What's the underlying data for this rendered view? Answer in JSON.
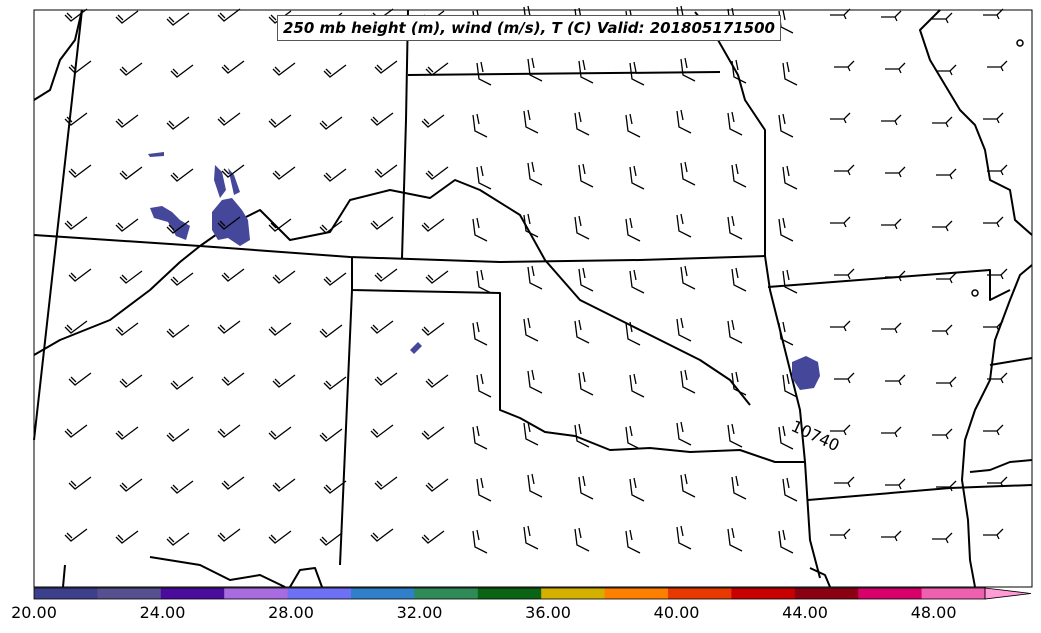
{
  "title": "250 mb height (m), wind (m/s), T (C) Valid: 201805171500",
  "contour_label": "10740",
  "colorbar": {
    "ticks": [
      "20.00",
      "24.00",
      "28.00",
      "32.00",
      "36.00",
      "40.00",
      "44.00",
      "48.00"
    ],
    "min": 20,
    "max": 51.2,
    "step": 1.6,
    "colors": [
      "#3c3f8c",
      "#57508f",
      "#4b0c9e",
      "#a86be0",
      "#6e70f5",
      "#2f7fc9",
      "#2e8b57",
      "#0a6414",
      "#d4b000",
      "#ff7f00",
      "#e83a00",
      "#c80000",
      "#8b0012",
      "#d8006a",
      "#f060b0",
      "#ff9bd5"
    ]
  },
  "features": {
    "state_boundaries": true,
    "wind_barbs": true,
    "shaded_temperature_field": true
  }
}
